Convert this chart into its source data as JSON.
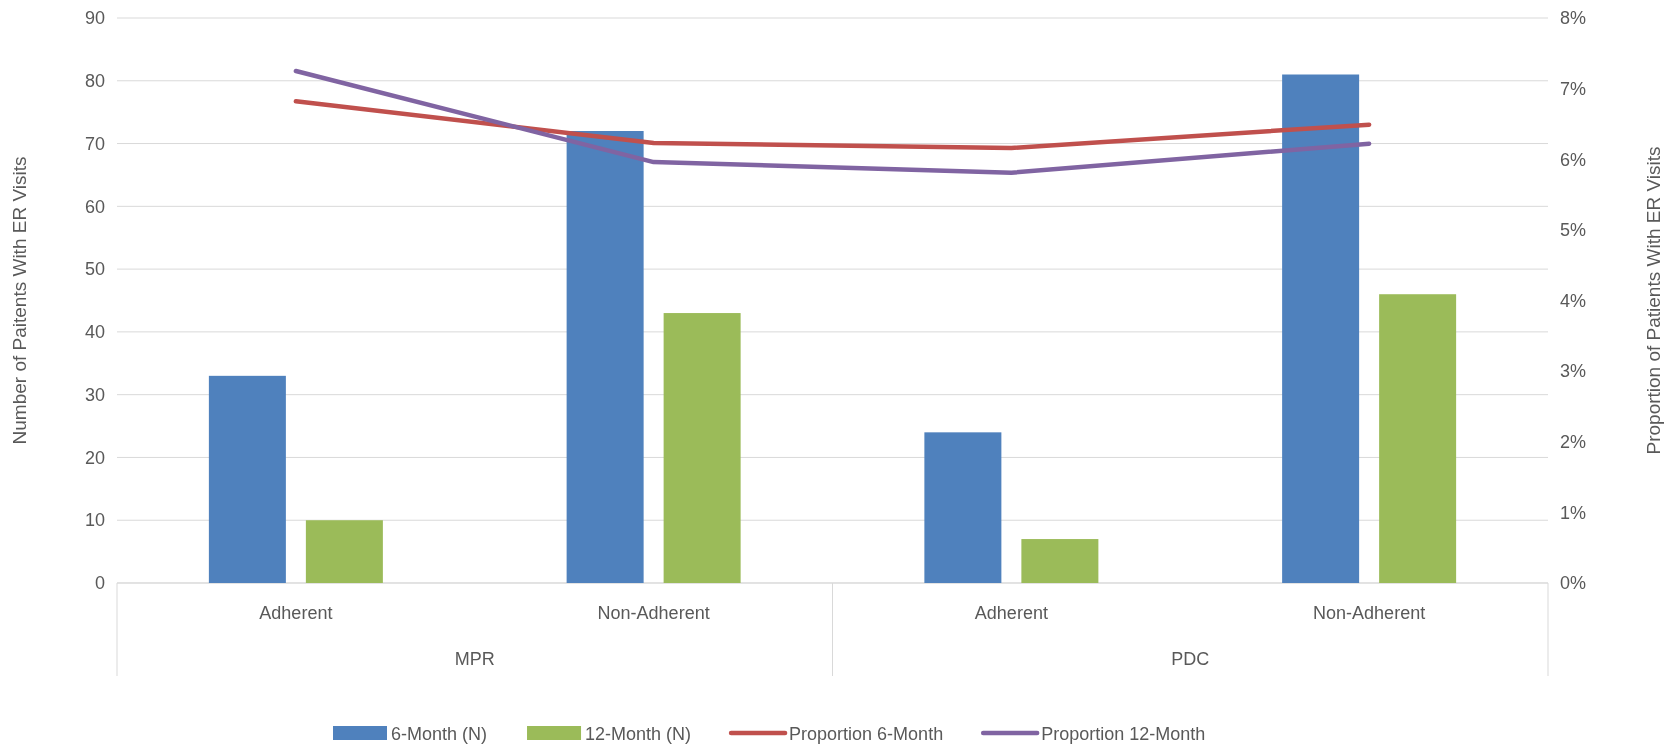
{
  "chart_data": {
    "type": "bar",
    "categories": [
      "Adherent",
      "Non-Adherent",
      "Adherent",
      "Non-Adherent"
    ],
    "annotations": [
      "MPR",
      "PDC"
    ],
    "ylabel": "Number of Paitents With ER Visits",
    "y2label": "Proportion of Patients With ER Visits",
    "ylim": [
      0,
      90
    ],
    "yticks": [
      0,
      10,
      20,
      30,
      40,
      50,
      60,
      70,
      80,
      90
    ],
    "y2lim": [
      0,
      8
    ],
    "y2ticks": [
      {
        "value": 0,
        "label": "0%"
      },
      {
        "value": 1,
        "label": "1%"
      },
      {
        "value": 2,
        "label": "2%"
      },
      {
        "value": 3,
        "label": "3%"
      },
      {
        "value": 4,
        "label": "4%"
      },
      {
        "value": 5,
        "label": "5%"
      },
      {
        "value": 6,
        "label": "6%"
      },
      {
        "value": 7,
        "label": "7%"
      },
      {
        "value": 8,
        "label": "8%"
      }
    ],
    "grid": "y",
    "legend": "bottom",
    "line_style": "solid",
    "series": [
      {
        "name": "6-Month (N)",
        "color": "#4f81bd",
        "values": [
          33,
          72,
          24,
          81
        ]
      },
      {
        "name": "12-Month (N)",
        "color": "#9bbb59",
        "values": [
          10,
          43,
          7,
          46
        ]
      },
      {
        "name": "Proportion 6-Month",
        "type": "line",
        "axis": "y2",
        "color": "#c0504d",
        "values": [
          6.82,
          6.23,
          6.16,
          6.49
        ]
      },
      {
        "name": "Proportion 12-Month",
        "type": "line",
        "axis": "y2",
        "color": "#8064a2",
        "values": [
          7.25,
          5.96,
          5.81,
          6.22
        ]
      }
    ]
  }
}
